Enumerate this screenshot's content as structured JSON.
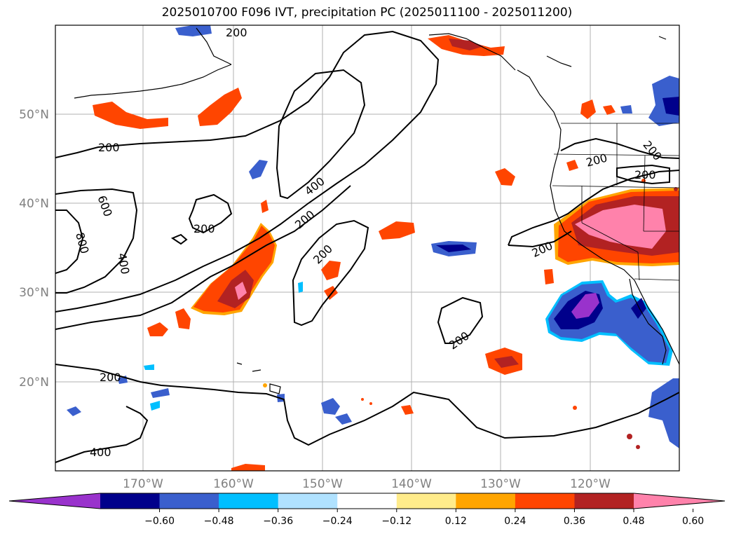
{
  "title": "2025010700 F096 IVT, precipitation PC (2025011100 - 2025011200)",
  "lat_labels": [
    "50°N",
    "40°N",
    "30°N",
    "20°N"
  ],
  "lon_labels": [
    "170°W",
    "160°W",
    "150°W",
    "140°W",
    "130°W",
    "120°W"
  ],
  "contour_labels": [
    "200",
    "200",
    "200",
    "200",
    "200",
    "200",
    "200",
    "200",
    "200",
    "400",
    "400",
    "400",
    "600",
    "800",
    "200",
    "200",
    "200"
  ],
  "colorbar": {
    "ticks": [
      "−0.60",
      "−0.48",
      "−0.36",
      "−0.24",
      "−0.12",
      "0.12",
      "0.24",
      "0.36",
      "0.48",
      "0.60"
    ],
    "colors": [
      "#9932cc",
      "#00008b",
      "#3a5fcd",
      "#00bfff",
      "#b0e2ff",
      "#ffffff",
      "#ffec8b",
      "#ffa500",
      "#ff4500",
      "#b22222",
      "#ff82ab"
    ]
  }
}
